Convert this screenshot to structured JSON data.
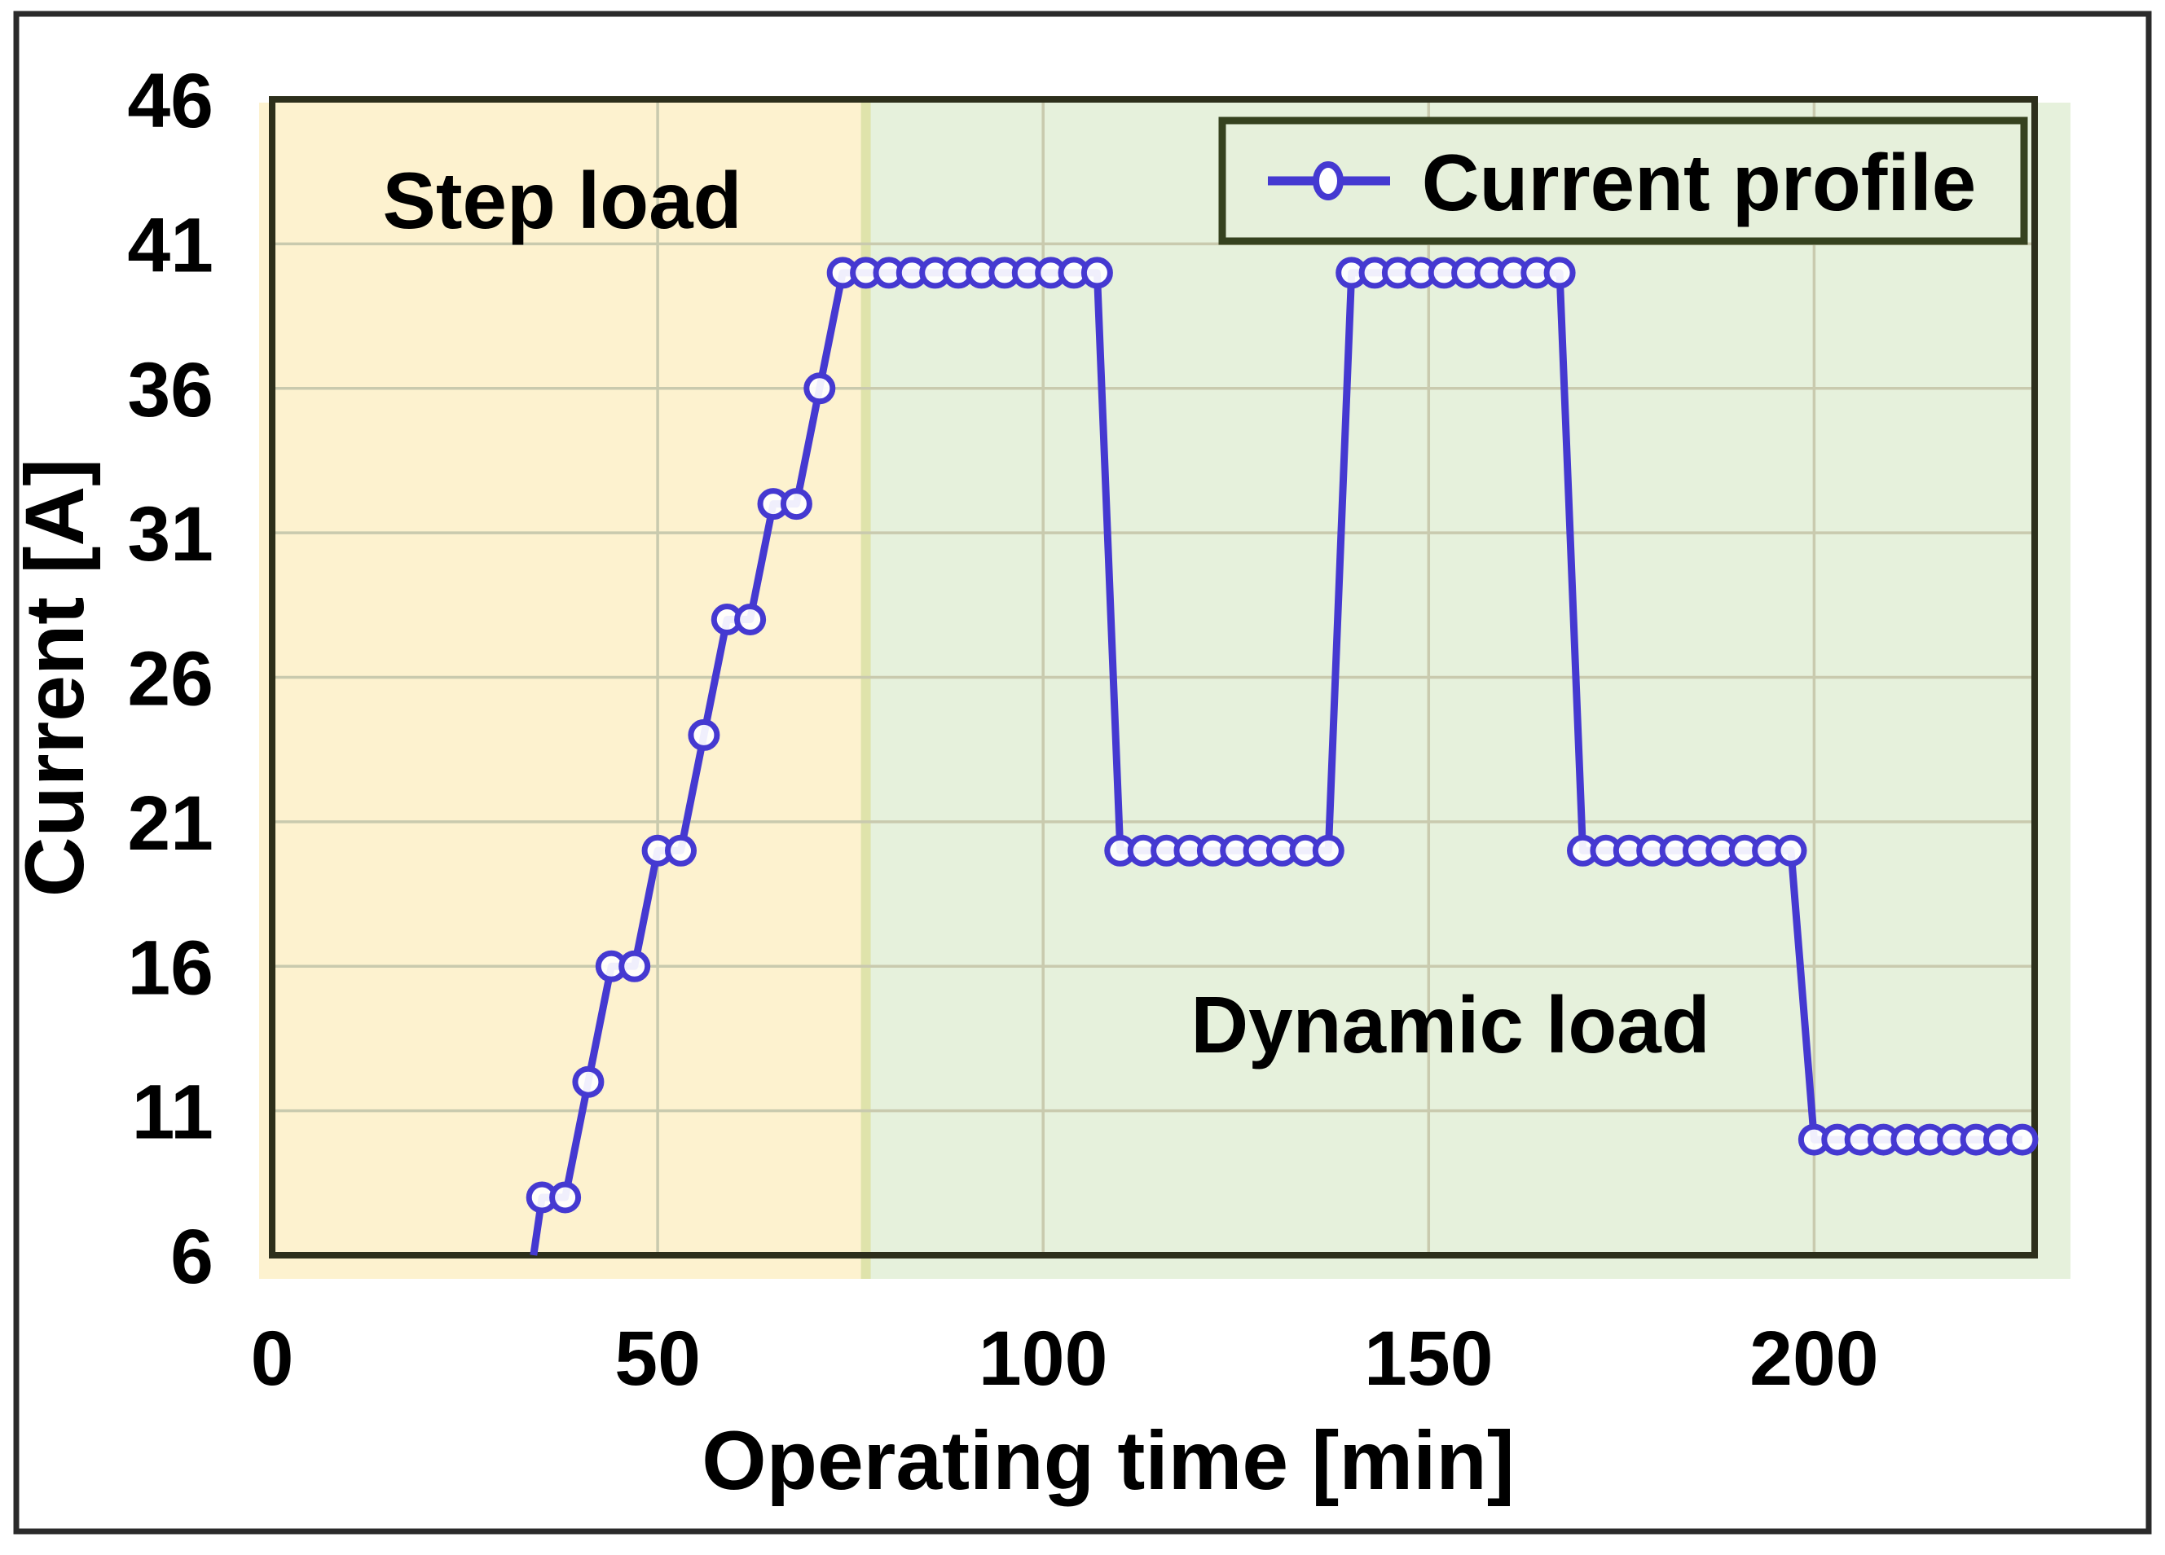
{
  "chart_data": {
    "type": "line",
    "title": "",
    "xlabel": "Operating time [min]",
    "ylabel": "Current [A]",
    "xlim": [
      0,
      228.6
    ],
    "ylim": [
      6,
      46
    ],
    "x_ticks": [
      0,
      50,
      100,
      150,
      200
    ],
    "y_ticks": [
      46,
      41,
      36,
      31,
      26,
      21,
      16,
      11,
      6
    ],
    "grid": true,
    "legend": {
      "label": "Current profile",
      "position": "top-right"
    },
    "line_start": [
      33.9,
      6
    ],
    "series": [
      {
        "name": "Current profile",
        "points": [
          [
            35,
            8
          ],
          [
            38,
            8
          ],
          [
            41,
            12
          ],
          [
            44,
            16
          ],
          [
            47,
            16
          ],
          [
            50,
            20
          ],
          [
            53,
            20
          ],
          [
            56,
            24
          ],
          [
            59,
            28
          ],
          [
            62,
            28
          ],
          [
            65,
            32
          ],
          [
            68,
            32
          ],
          [
            71,
            36
          ],
          [
            74,
            40
          ],
          [
            77,
            40
          ],
          [
            80,
            40
          ],
          [
            83,
            40
          ],
          [
            86,
            40
          ],
          [
            89,
            40
          ],
          [
            92,
            40
          ],
          [
            95,
            40
          ],
          [
            98,
            40
          ],
          [
            101,
            40
          ],
          [
            104,
            40
          ],
          [
            107,
            40
          ],
          [
            110,
            20
          ],
          [
            113,
            20
          ],
          [
            116,
            20
          ],
          [
            119,
            20
          ],
          [
            122,
            20
          ],
          [
            125,
            20
          ],
          [
            128,
            20
          ],
          [
            131,
            20
          ],
          [
            134,
            20
          ],
          [
            137,
            20
          ],
          [
            140,
            40
          ],
          [
            143,
            40
          ],
          [
            146,
            40
          ],
          [
            149,
            40
          ],
          [
            152,
            40
          ],
          [
            155,
            40
          ],
          [
            158,
            40
          ],
          [
            161,
            40
          ],
          [
            164,
            40
          ],
          [
            167,
            40
          ],
          [
            170,
            20
          ],
          [
            173,
            20
          ],
          [
            176,
            20
          ],
          [
            179,
            20
          ],
          [
            182,
            20
          ],
          [
            185,
            20
          ],
          [
            188,
            20
          ],
          [
            191,
            20
          ],
          [
            194,
            20
          ],
          [
            197,
            20
          ],
          [
            200,
            10
          ],
          [
            203,
            10
          ],
          [
            206,
            10
          ],
          [
            209,
            10
          ],
          [
            212,
            10
          ],
          [
            215,
            10
          ],
          [
            218,
            10
          ],
          [
            221,
            10
          ],
          [
            224,
            10
          ],
          [
            227,
            10
          ]
        ]
      }
    ],
    "annotations": [
      {
        "text": "Step load",
        "t": 37.6,
        "i": 42.5
      },
      {
        "text": "Dynamic load",
        "t": 153,
        "i": 14
      }
    ],
    "regions": [
      {
        "name": "Step load",
        "from": 0,
        "to": 77,
        "color": "#fdf2cf"
      },
      {
        "name": "Dynamic load",
        "from": 77,
        "to": 228.6,
        "color": "#e6f1dc"
      }
    ]
  },
  "colors": {
    "background": "#ffffff",
    "outer_border": "#2a2a2a",
    "plot_frame": "#2d2f1b",
    "step_region_fill": "#fdf2cf",
    "dynamic_region_fill": "#e6f1dc",
    "region_divider": "#dfe3ab",
    "gridline": "#c9caae",
    "line": "#4539d1",
    "marker_fill": "#ffffff",
    "legend_fill": "#e6f0db",
    "legend_border": "#36421f",
    "text": "#000000"
  }
}
